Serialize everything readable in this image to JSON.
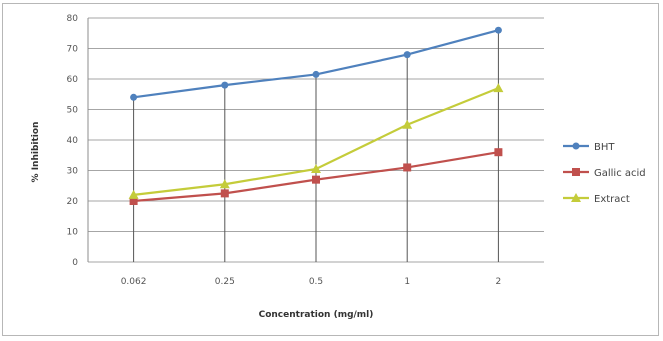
{
  "chart_data": {
    "type": "line",
    "title": "",
    "xlabel": "Concentration (mg/ml)",
    "ylabel": "% Inhibition",
    "categories": [
      "0.062",
      "0.25",
      "0.5",
      "1",
      "2"
    ],
    "ylim": [
      0,
      80
    ],
    "yticks": [
      "0",
      "10",
      "20",
      "30",
      "40",
      "50",
      "60",
      "70",
      "80"
    ],
    "grid": true,
    "legend_position": "right",
    "series": [
      {
        "name": "BHT",
        "values": [
          54,
          58,
          61.5,
          68,
          76
        ],
        "color": "#4f81bd",
        "marker": "circle"
      },
      {
        "name": "Gallic acid",
        "values": [
          20,
          22.5,
          27,
          31,
          36
        ],
        "color": "#c0504d",
        "marker": "square"
      },
      {
        "name": "Extract",
        "values": [
          22,
          25.5,
          30.5,
          45,
          57
        ],
        "color": "#c4cc3a",
        "marker": "triangle"
      }
    ]
  }
}
